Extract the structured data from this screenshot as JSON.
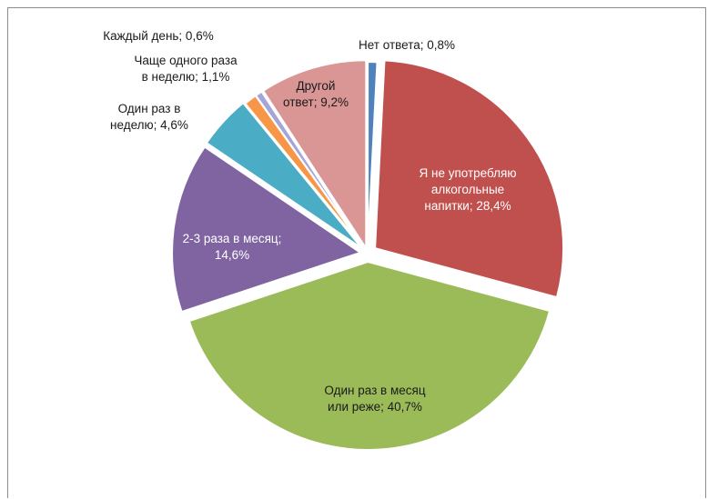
{
  "chart_data": {
    "type": "pie",
    "title": "",
    "start_angle_deg": 90,
    "direction": "clockwise",
    "slices": [
      {
        "label": "Нет ответа",
        "value": 0.8,
        "display": "0,8%",
        "color": "#4f81bd",
        "label_lines": [
          "Нет ответа; 0,8%"
        ],
        "label_color": "#1a1a1a"
      },
      {
        "label": "Я не употребляю алкогольные напитки",
        "value": 28.4,
        "display": "28,4%",
        "color": "#c0504d",
        "label_lines": [
          "Я не употребляю",
          "алкогольные",
          "напитки; 28,4%"
        ],
        "label_color": "#ffffff"
      },
      {
        "label": "Один раз в месяц или реже",
        "value": 40.7,
        "display": "40,7%",
        "color": "#9bbb59",
        "label_lines": [
          "Один раз в месяц",
          "или реже; 40,7%"
        ],
        "label_color": "#1a1a1a"
      },
      {
        "label": "2-3 раза в месяц",
        "value": 14.6,
        "display": "14,6%",
        "color": "#8064a2",
        "label_lines": [
          "2-3 раза в месяц;",
          "14,6%"
        ],
        "label_color": "#ffffff"
      },
      {
        "label": "Один раз в неделю",
        "value": 4.6,
        "display": "4,6%",
        "color": "#4bacc6",
        "label_lines": [
          "Один раз в",
          "неделю; 4,6%"
        ],
        "label_color": "#1a1a1a"
      },
      {
        "label": "Чаще одного раза в неделю",
        "value": 1.1,
        "display": "1,1%",
        "color": "#f79646",
        "label_lines": [
          "Чаще одного раза",
          "в неделю; 1,1%"
        ],
        "label_color": "#1a1a1a"
      },
      {
        "label": "Каждый день",
        "value": 0.6,
        "display": "0,6%",
        "color": "#a5a5d8",
        "label_lines": [
          "Каждый день; 0,6%"
        ],
        "label_color": "#1a1a1a"
      },
      {
        "label": "Другой ответ",
        "value": 9.2,
        "display": "9,2%",
        "color": "#d99694",
        "label_lines": [
          "Другой",
          "ответ; 9,2%"
        ],
        "label_color": "#1a1a1a"
      }
    ]
  }
}
